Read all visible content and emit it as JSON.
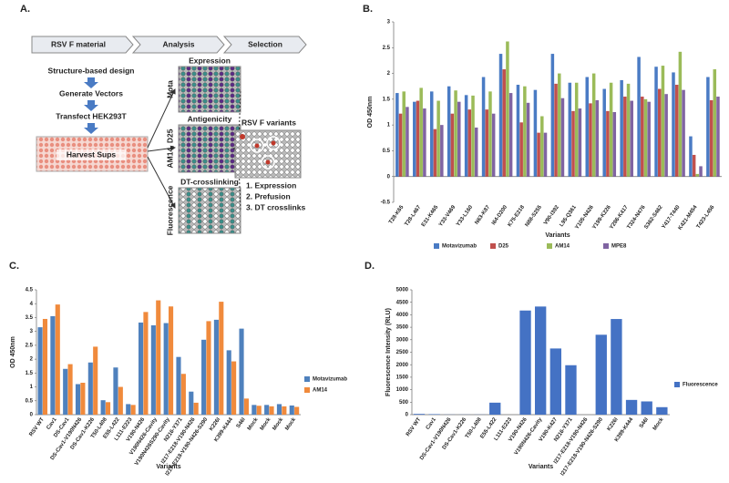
{
  "panel_labels": [
    "A.",
    "B.",
    "C.",
    "D."
  ],
  "panel_a": {
    "header": [
      "RSV F material",
      "Analysis",
      "Selection"
    ],
    "steps": [
      "Structure-based design",
      "Generate Vectors",
      "Transfect HEK293T",
      "Harvest Sups"
    ],
    "assays": [
      {
        "title": "Expression",
        "side": "Mota"
      },
      {
        "title": "Antigenicity",
        "side": "AM14, D25"
      },
      {
        "title": "DT-crosslinking",
        "side": "Fluorescence"
      }
    ],
    "result": "RSV F variants",
    "criteria": [
      "1. Expression",
      "2. Prefusion",
      "3. DT crosslinks"
    ]
  },
  "chart_data": [
    {
      "type": "bar",
      "xlabel": "Variants",
      "ylabel": "OD 450nm",
      "legend": "bottom",
      "grid": false,
      "ylim": [
        -0.5,
        3
      ],
      "yticks": [
        -0.5,
        0,
        0.5,
        1,
        1.5,
        2,
        2.5,
        3
      ],
      "categories": [
        "T28-K65",
        "T28-L467",
        "E31-K465",
        "Y33-V469",
        "Y33-L160",
        "N63-K87",
        "I64-D200",
        "K75-E218",
        "N88-S255",
        "V90-I392",
        "L95-Q361",
        "Y105-N426",
        "Y198-K226",
        "Y286-K417",
        "T324-N476",
        "S362-S462",
        "Y417-T440",
        "K421-M454",
        "T423-L456"
      ],
      "series": [
        {
          "name": "Motavizumab",
          "color": "#4a7bc4",
          "values": [
            1.62,
            1.45,
            1.65,
            1.75,
            1.58,
            1.93,
            2.38,
            1.78,
            1.68,
            2.38,
            1.82,
            1.93,
            1.7,
            1.87,
            2.32,
            2.13,
            2.02,
            0.78,
            1.93
          ]
        },
        {
          "name": "D25",
          "color": "#c0504d",
          "values": [
            1.22,
            1.47,
            0.92,
            1.22,
            1.3,
            1.3,
            2.08,
            1.05,
            0.85,
            1.8,
            1.27,
            1.42,
            1.27,
            1.55,
            1.55,
            1.7,
            1.78,
            0.42,
            1.48
          ]
        },
        {
          "name": "AM14",
          "color": "#9bbb59",
          "values": [
            1.65,
            1.72,
            1.47,
            1.67,
            1.57,
            1.65,
            2.62,
            1.75,
            1.17,
            2.0,
            1.82,
            2.0,
            1.82,
            1.8,
            1.5,
            2.15,
            2.42,
            0.05,
            2.08
          ]
        },
        {
          "name": "MPE8",
          "color": "#8064a2",
          "values": [
            1.35,
            1.32,
            1.0,
            1.45,
            0.95,
            1.22,
            1.62,
            1.43,
            0.85,
            1.52,
            1.32,
            1.48,
            1.25,
            1.47,
            1.45,
            1.6,
            1.68,
            0.2,
            1.55
          ]
        }
      ]
    },
    {
      "type": "bar",
      "xlabel": "Variants",
      "ylabel": "OD 450nm",
      "legend": "right",
      "grid": false,
      "ylim": [
        0,
        4.5
      ],
      "yticks": [
        0,
        0.5,
        1,
        1.5,
        2,
        2.5,
        3,
        3.5,
        4,
        4.5
      ],
      "categories": [
        "RSV WT",
        "Cav1",
        "DS-Cav1",
        "DS-Cav1-V190N426",
        "DS-Cav1-K226",
        "T50-L408",
        "E55-L422",
        "L111-E223",
        "V190-N426",
        "V190N426-Cavity",
        "V190N426S290-Cavity",
        "N216-Y371",
        "I217-E218-V190-N426",
        "I217-E218-V190-N426-S290",
        "K226I",
        "K399-K444",
        "S46I",
        "Mock",
        "Mock",
        "Mock",
        "Mock"
      ],
      "series": [
        {
          "name": "Motavizumab",
          "color": "#4f81bd",
          "values": [
            3.15,
            3.55,
            1.65,
            1.1,
            1.88,
            0.52,
            1.7,
            0.38,
            3.32,
            3.22,
            3.3,
            2.08,
            0.83,
            2.7,
            3.42,
            2.32,
            3.1,
            0.35,
            0.35,
            0.38,
            0.33
          ]
        },
        {
          "name": "AM14",
          "color": "#f08a3c",
          "values": [
            3.45,
            3.97,
            1.82,
            1.15,
            2.45,
            0.45,
            1.0,
            0.35,
            3.7,
            4.12,
            3.9,
            1.47,
            0.43,
            3.37,
            4.07,
            1.92,
            0.58,
            0.32,
            0.3,
            0.3,
            0.28
          ]
        }
      ]
    },
    {
      "type": "bar",
      "xlabel": "Variants",
      "ylabel": "Fluorescence Intensity (RLU)",
      "legend": "right",
      "grid": false,
      "ylim": [
        0,
        5000
      ],
      "yticks": [
        0,
        500,
        1000,
        1500,
        2000,
        2500,
        3000,
        3500,
        4000,
        4500,
        5000
      ],
      "categories": [
        "RSV WT",
        "Cav1",
        "DS-Cav1-V190N426",
        "DS-Cav1-K226",
        "T50-L408",
        "E55-L422",
        "L111-E223",
        "V190-N426",
        "V190N426-Cavity",
        "V190-K427",
        "N216-Y371",
        "I217-E218-V190-N426",
        "I217-E218-V190-N426-S290",
        "K226I",
        "K399-K444",
        "S46I",
        "Mock"
      ],
      "series": [
        {
          "name": "Fluorescence",
          "color": "#4472c4",
          "values": [
            30,
            20,
            5,
            5,
            5,
            480,
            0,
            4170,
            4330,
            2650,
            1980,
            0,
            3200,
            3830,
            590,
            530,
            300
          ]
        }
      ]
    }
  ]
}
